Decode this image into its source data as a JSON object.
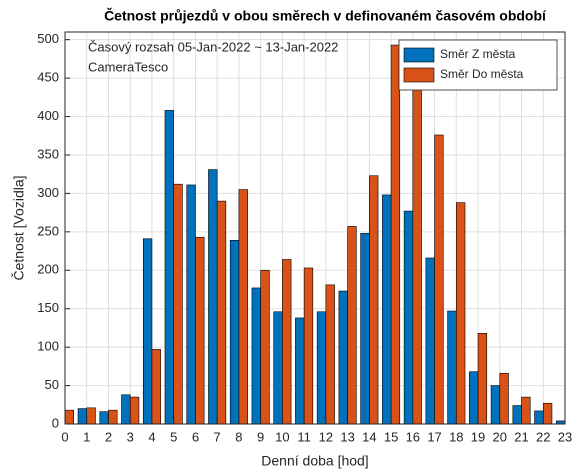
{
  "chart_data": {
    "type": "bar",
    "title": "Četnost průjezdů v obou směrech v definovaném časovém období",
    "xlabel": "Denní doba [hod]",
    "ylabel": "Četnost [Vozidla]",
    "annotations": [
      "Časový rozsah 05-Jan-2022 ~ 13-Jan-2022",
      "CameraTesco"
    ],
    "categories": [
      "0",
      "1",
      "2",
      "3",
      "4",
      "5",
      "6",
      "7",
      "8",
      "9",
      "10",
      "11",
      "12",
      "13",
      "14",
      "15",
      "16",
      "17",
      "18",
      "19",
      "20",
      "21",
      "22",
      "23"
    ],
    "series": [
      {
        "name": "Směr Z města",
        "color": "#0072BD",
        "values": [
          17,
          20,
          16,
          38,
          241,
          408,
          311,
          331,
          239,
          177,
          146,
          138,
          146,
          173,
          248,
          298,
          277,
          216,
          147,
          68,
          50,
          24,
          17,
          4
        ]
      },
      {
        "name": "Směr Do města",
        "color": "#D95319",
        "values": [
          18,
          21,
          18,
          35,
          97,
          312,
          243,
          290,
          305,
          200,
          214,
          203,
          181,
          257,
          323,
          493,
          440,
          376,
          288,
          118,
          66,
          35,
          27,
          5
        ]
      }
    ],
    "ylim": [
      0,
      510
    ],
    "yticks": [
      0,
      50,
      100,
      150,
      200,
      250,
      300,
      350,
      400,
      450,
      500
    ],
    "grid": true,
    "legend": "northeast"
  }
}
